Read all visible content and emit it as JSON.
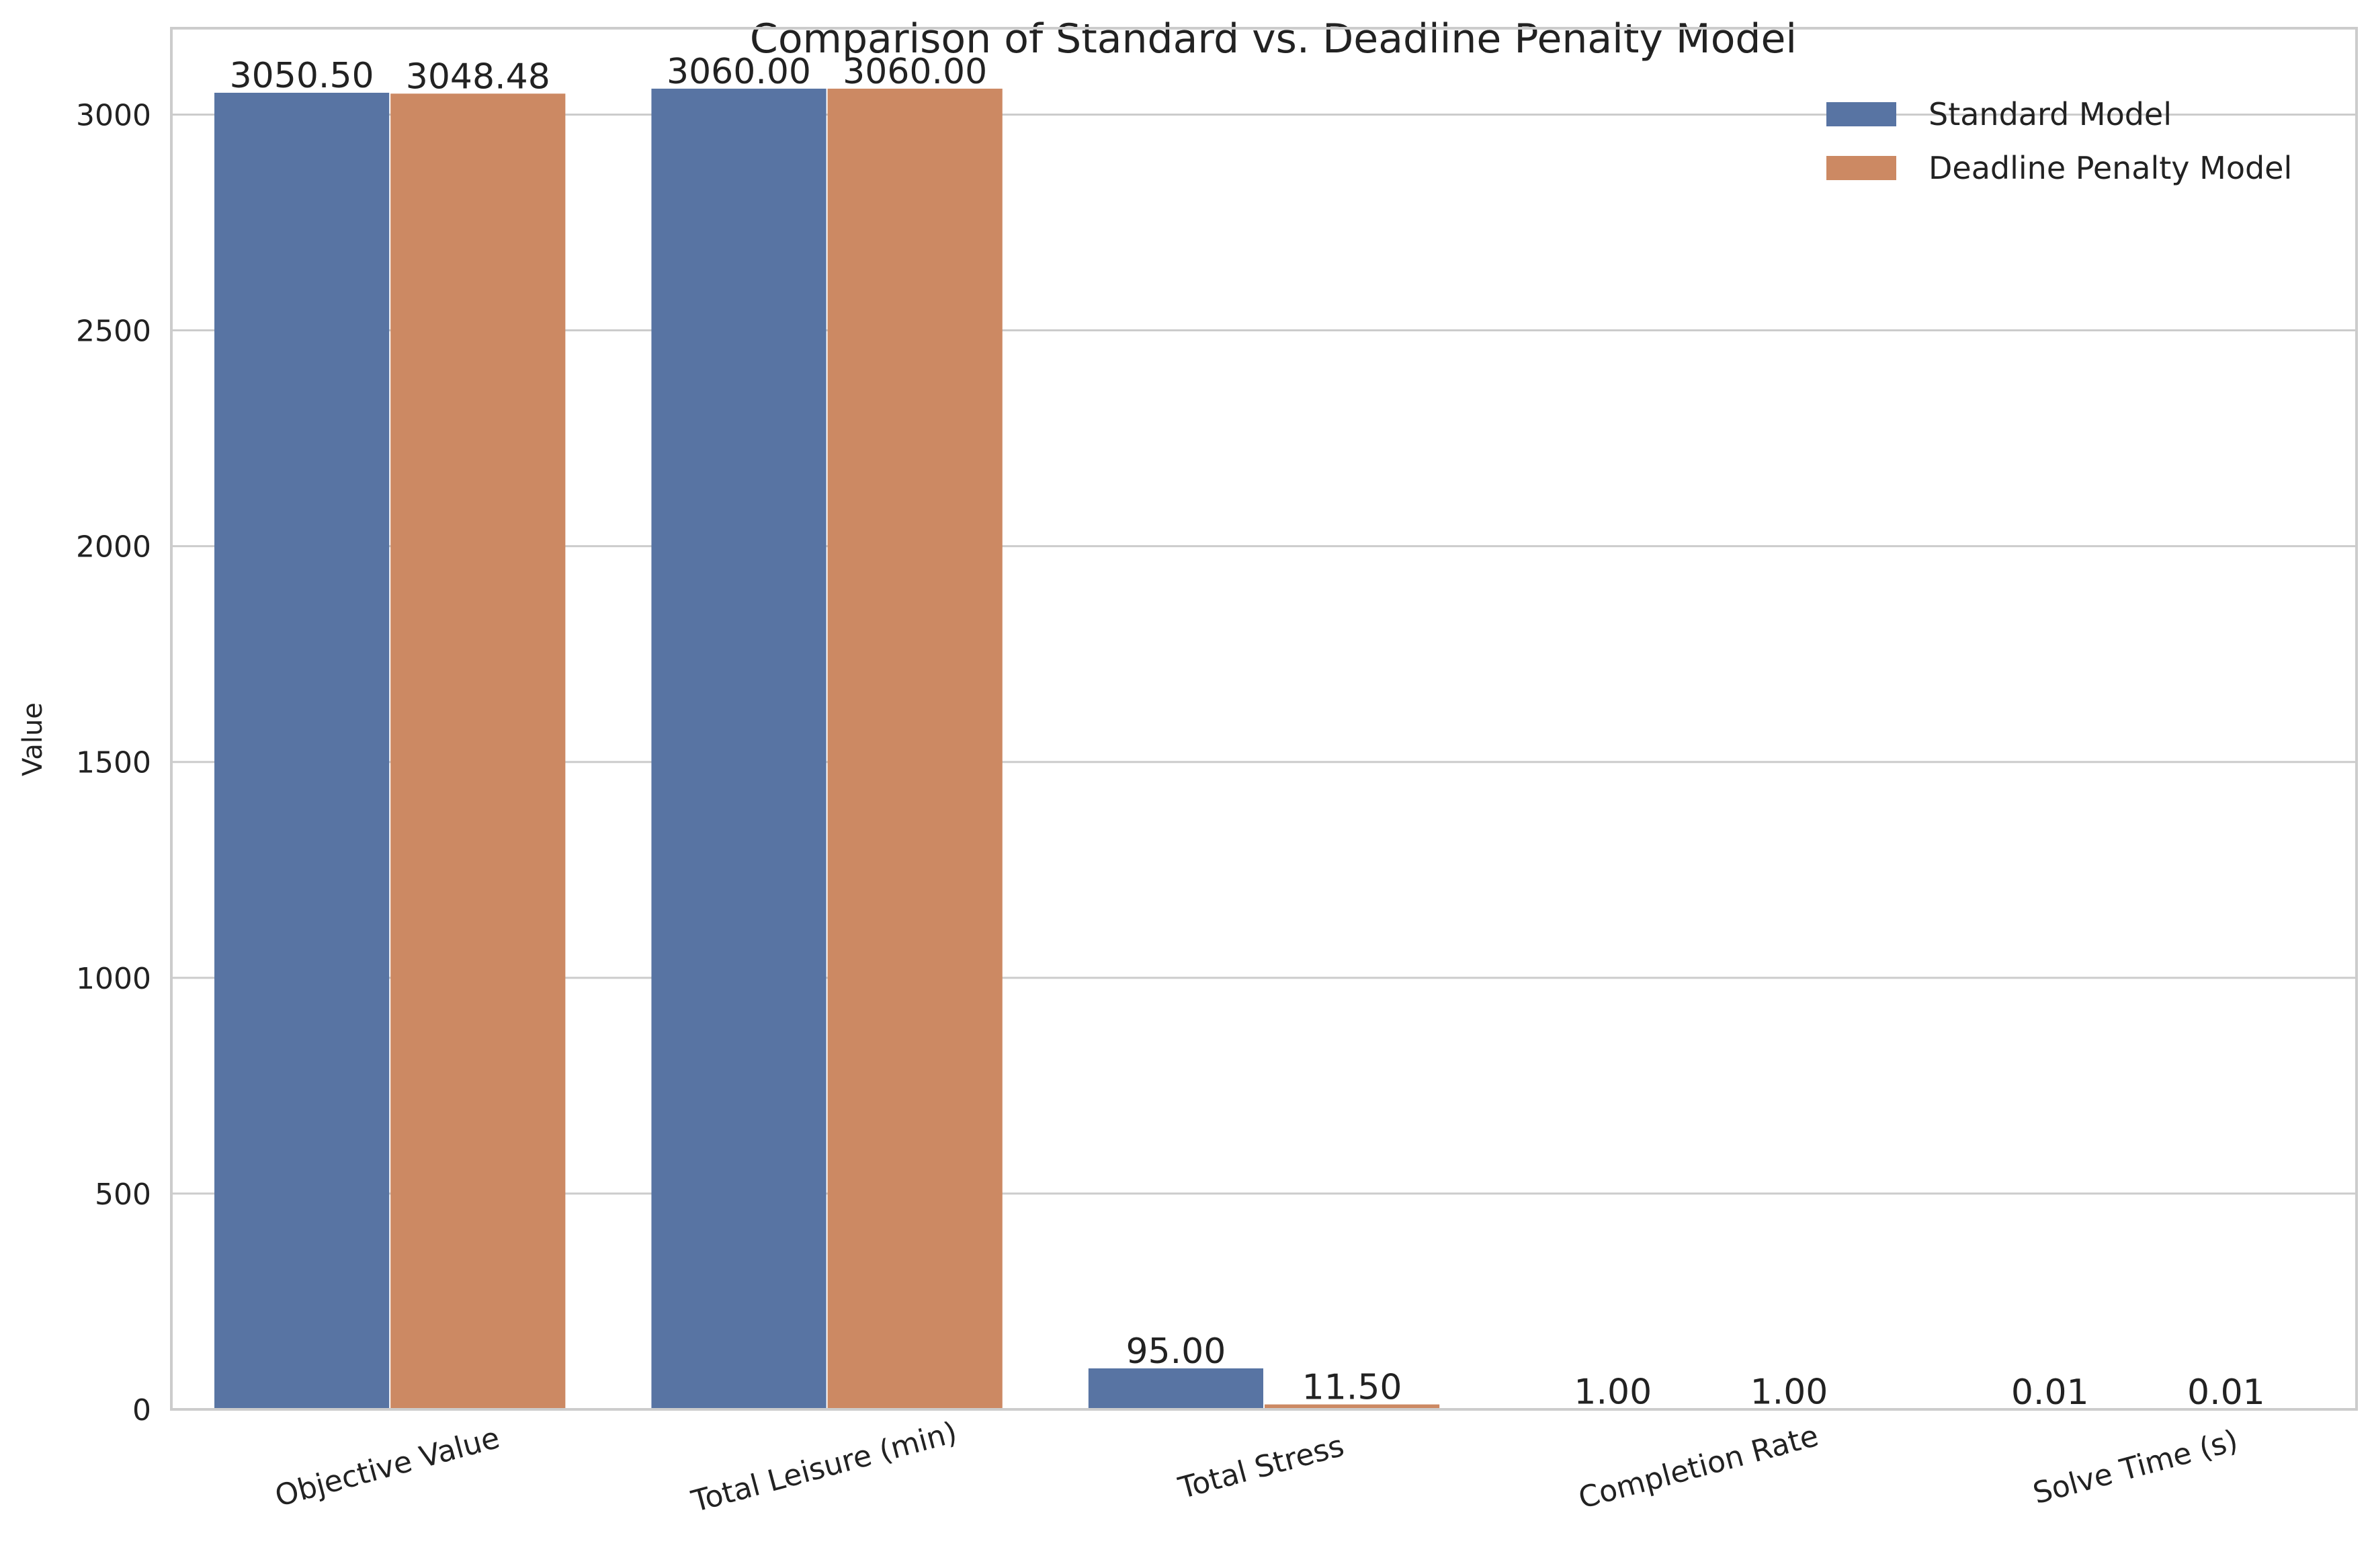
{
  "chart_data": {
    "type": "bar",
    "title": "Comparison of Standard vs. Deadline Penalty Model",
    "xlabel": "",
    "ylabel": "Value",
    "categories": [
      "Objective Value",
      "Total Leisure (min)",
      "Total Stress",
      "Completion Rate",
      "Solve Time (s)"
    ],
    "series": [
      {
        "name": "Standard Model",
        "color": "#5874a3",
        "values": [
          3050.5,
          3060.0,
          95.0,
          1.0,
          0.01
        ],
        "labels": [
          "3050.50",
          "3060.00",
          "95.00",
          "1.00",
          "0.01"
        ]
      },
      {
        "name": "Deadline Penalty Model",
        "color": "#cc8963",
        "values": [
          3048.48,
          3060.0,
          11.5,
          1.0,
          0.01
        ],
        "labels": [
          "3048.48",
          "3060.00",
          "11.50",
          "1.00",
          "0.01"
        ]
      }
    ],
    "ylim": [
      0,
      3200
    ],
    "yticks": [
      0,
      500,
      1000,
      1500,
      2000,
      2500,
      3000
    ],
    "ytick_labels": [
      "0",
      "500",
      "1000",
      "1500",
      "2000",
      "2500",
      "3000"
    ],
    "grid": "horizontal",
    "legend_position": "top-right"
  }
}
